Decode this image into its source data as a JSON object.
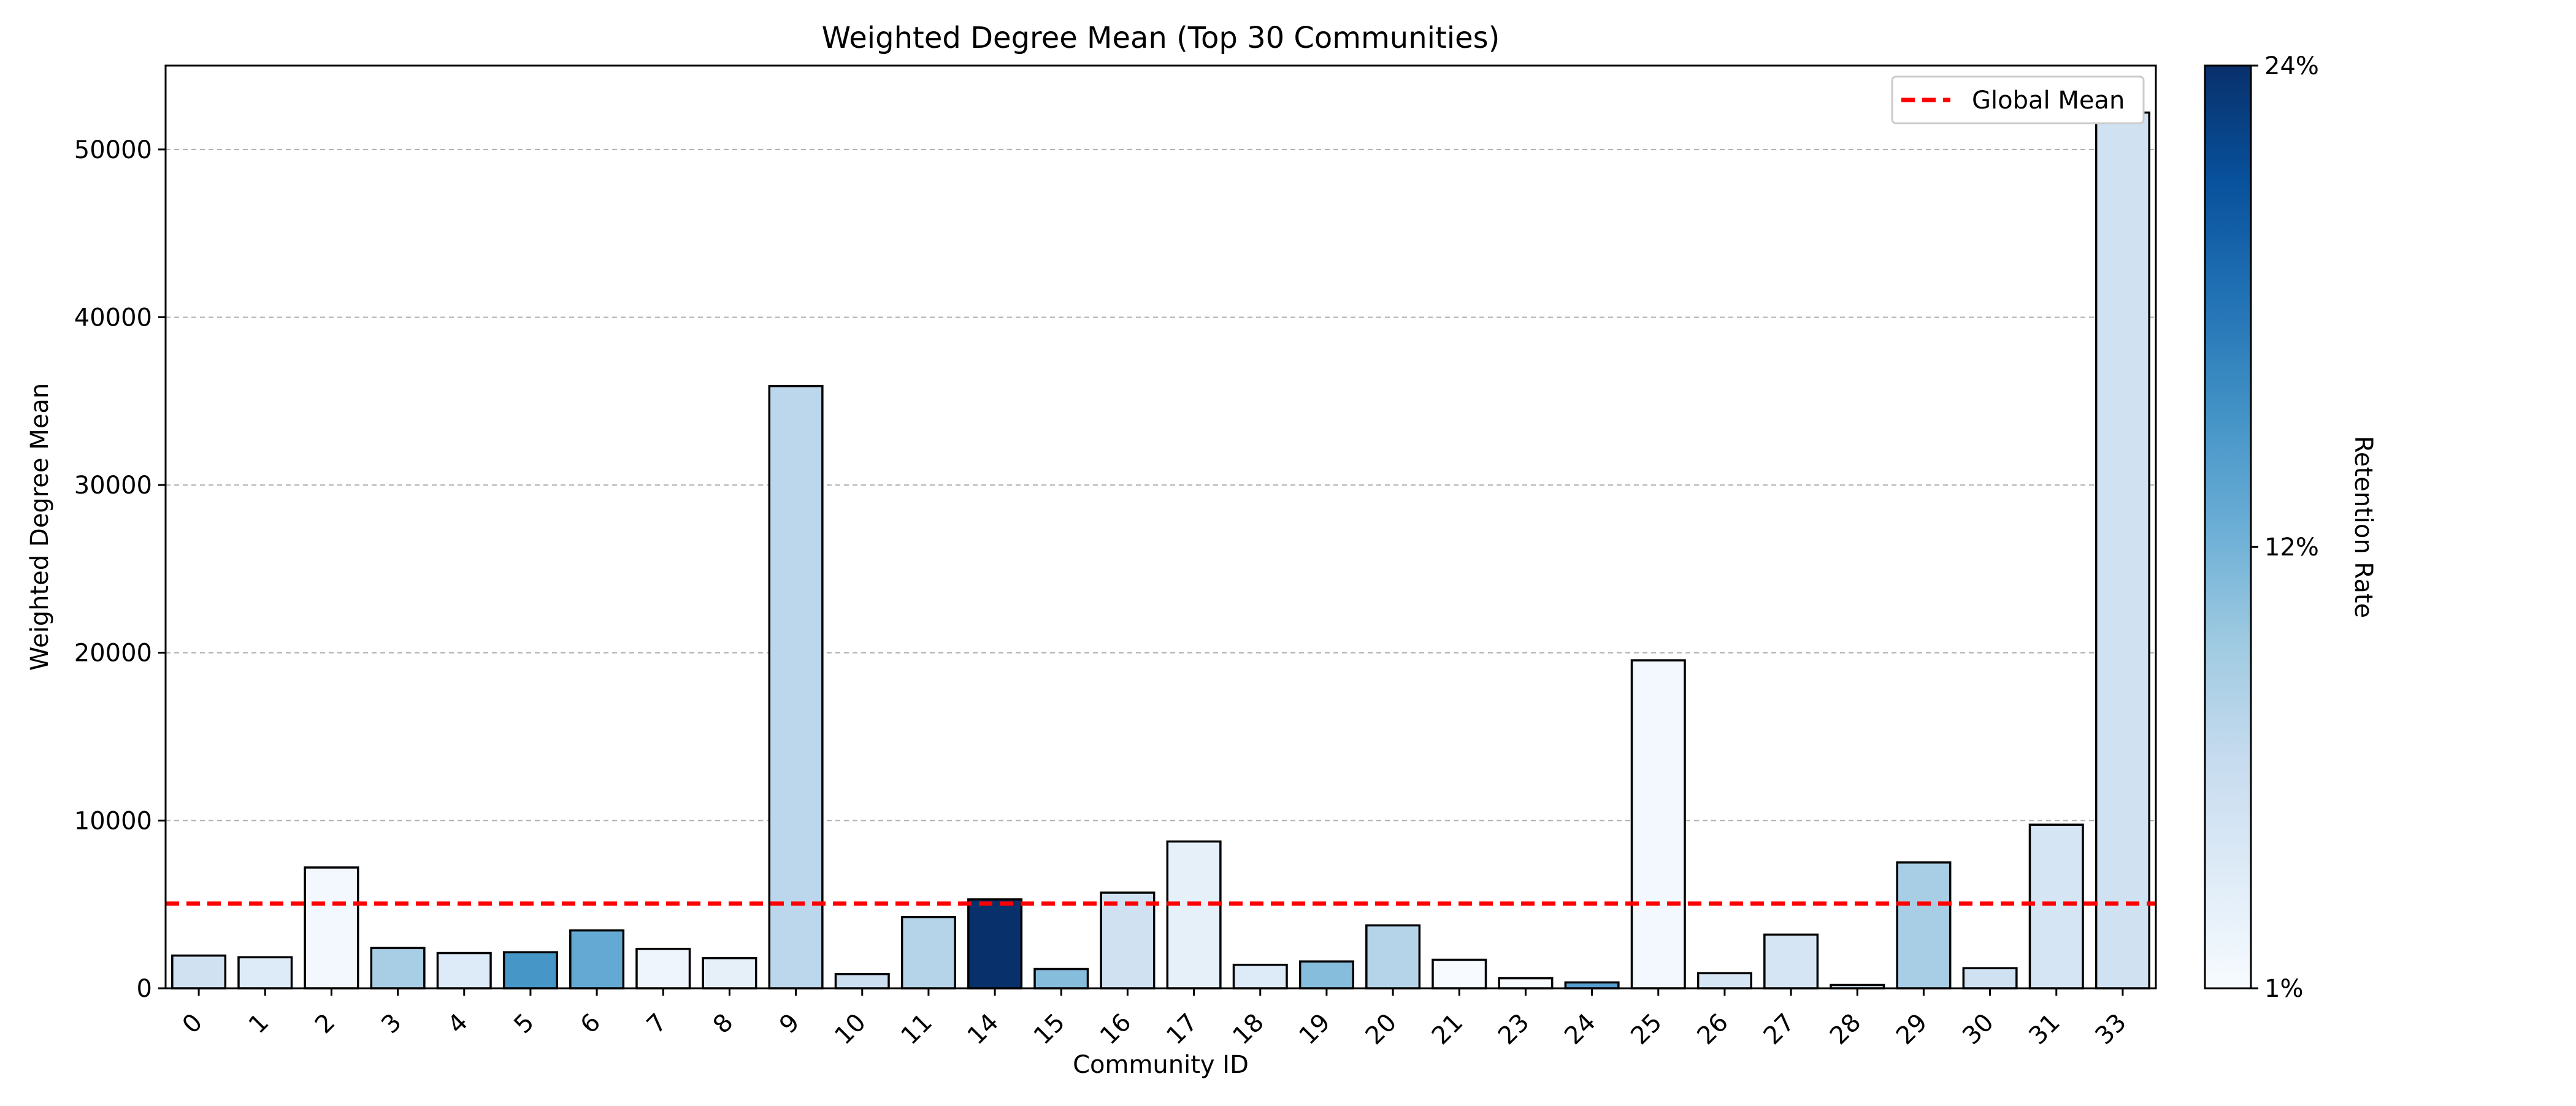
{
  "chart_data": {
    "type": "bar",
    "title": "Weighted Degree Mean (Top 30 Communities)",
    "xlabel": "Community ID",
    "ylabel": "Weighted Degree Mean",
    "categories": [
      "0",
      "1",
      "2",
      "3",
      "4",
      "5",
      "6",
      "7",
      "8",
      "9",
      "10",
      "11",
      "14",
      "15",
      "16",
      "17",
      "18",
      "19",
      "20",
      "21",
      "23",
      "24",
      "25",
      "26",
      "27",
      "28",
      "29",
      "30",
      "31",
      "33"
    ],
    "values": [
      1950,
      1850,
      7200,
      2400,
      2100,
      2150,
      3450,
      2350,
      1800,
      35900,
      850,
      4250,
      5300,
      1150,
      5700,
      8750,
      1400,
      1600,
      3750,
      1700,
      600,
      350,
      19550,
      900,
      3200,
      200,
      7500,
      1200,
      9750,
      52200
    ],
    "retention_rate_pct": [
      5.5,
      4,
      1.5,
      9,
      4,
      15,
      13,
      2,
      3,
      7.5,
      6,
      8,
      24,
      11,
      5.5,
      3,
      4,
      11,
      8,
      1,
      1,
      14,
      1.5,
      5,
      5,
      5,
      9,
      5.5,
      5,
      5.5
    ],
    "ylim": [
      0,
      55000
    ],
    "yticks": [
      0,
      10000,
      20000,
      30000,
      40000,
      50000
    ],
    "grid": "y",
    "reference_line": {
      "label": "Global Mean",
      "value": 5050,
      "color": "#ff0000",
      "style": "dashed"
    },
    "legend": {
      "position": "top-right",
      "entries": [
        "Global Mean"
      ]
    },
    "colorbar": {
      "label": "Retention Rate",
      "min": 1,
      "max": 24,
      "tick_labels": [
        "1%",
        "12%",
        "24%"
      ],
      "tick_values": [
        1,
        12,
        24
      ],
      "colormap": "Blues",
      "colormap_stops": [
        "#f7fbff",
        "#deebf7",
        "#c6dbef",
        "#9ecae1",
        "#6baed6",
        "#4292c6",
        "#2171b5",
        "#08519c",
        "#08306b"
      ]
    }
  }
}
